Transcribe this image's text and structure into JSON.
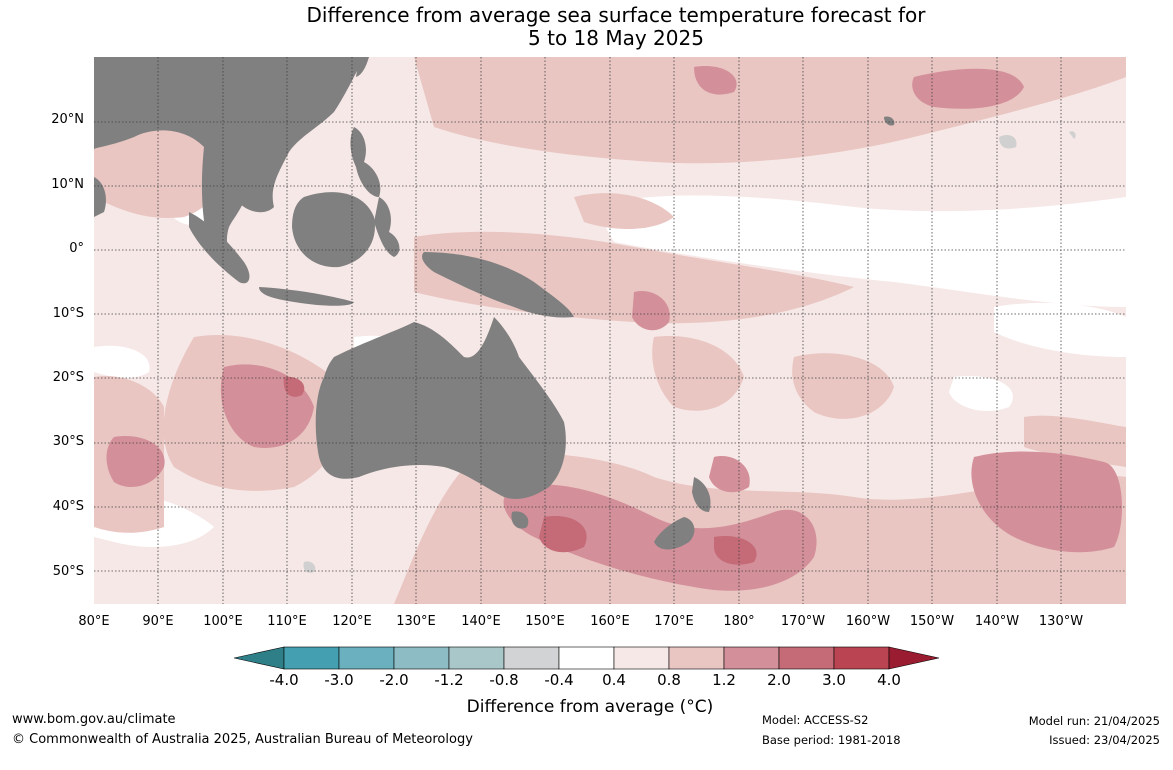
{
  "title": {
    "line1": "Difference from average sea surface temperature forecast for",
    "line2": "5 to 18 May 2025"
  },
  "map": {
    "lat_labels": [
      "20°N",
      "10°N",
      "0°",
      "10°S",
      "20°S",
      "30°S",
      "40°S",
      "50°S"
    ],
    "lon_labels": [
      "80°E",
      "90°E",
      "100°E",
      "110°E",
      "120°E",
      "130°E",
      "140°E",
      "150°E",
      "160°E",
      "170°E",
      "180°",
      "170°W",
      "160°W",
      "150°W",
      "140°W",
      "130°W"
    ],
    "land_color": "#808080",
    "ice_color": "#d0d0d0"
  },
  "colorbar": {
    "ticks": [
      "-4.0",
      "-3.0",
      "-2.0",
      "-1.2",
      "-0.8",
      "-0.4",
      "0.4",
      "0.8",
      "1.2",
      "2.0",
      "3.0",
      "4.0"
    ],
    "colors": [
      "#2f7f88",
      "#44a0b0",
      "#6ab0be",
      "#8dbcc4",
      "#a9c7c9",
      "#d1d3d4",
      "#ffffff",
      "#f6e8e7",
      "#e9c6c2",
      "#d4909a",
      "#c56a77",
      "#bb4452",
      "#9a1c30"
    ],
    "label": "Difference from average (°C)"
  },
  "footer": {
    "website": "www.bom.gov.au/climate",
    "copyright": "© Commonwealth of Australia 2025, Australian Bureau of Meteorology",
    "model": "Model: ACCESS-S2",
    "base_period": "Base period: 1981-2018",
    "model_run": "Model run: 21/04/2025",
    "issued": "Issued: 23/04/2025"
  }
}
